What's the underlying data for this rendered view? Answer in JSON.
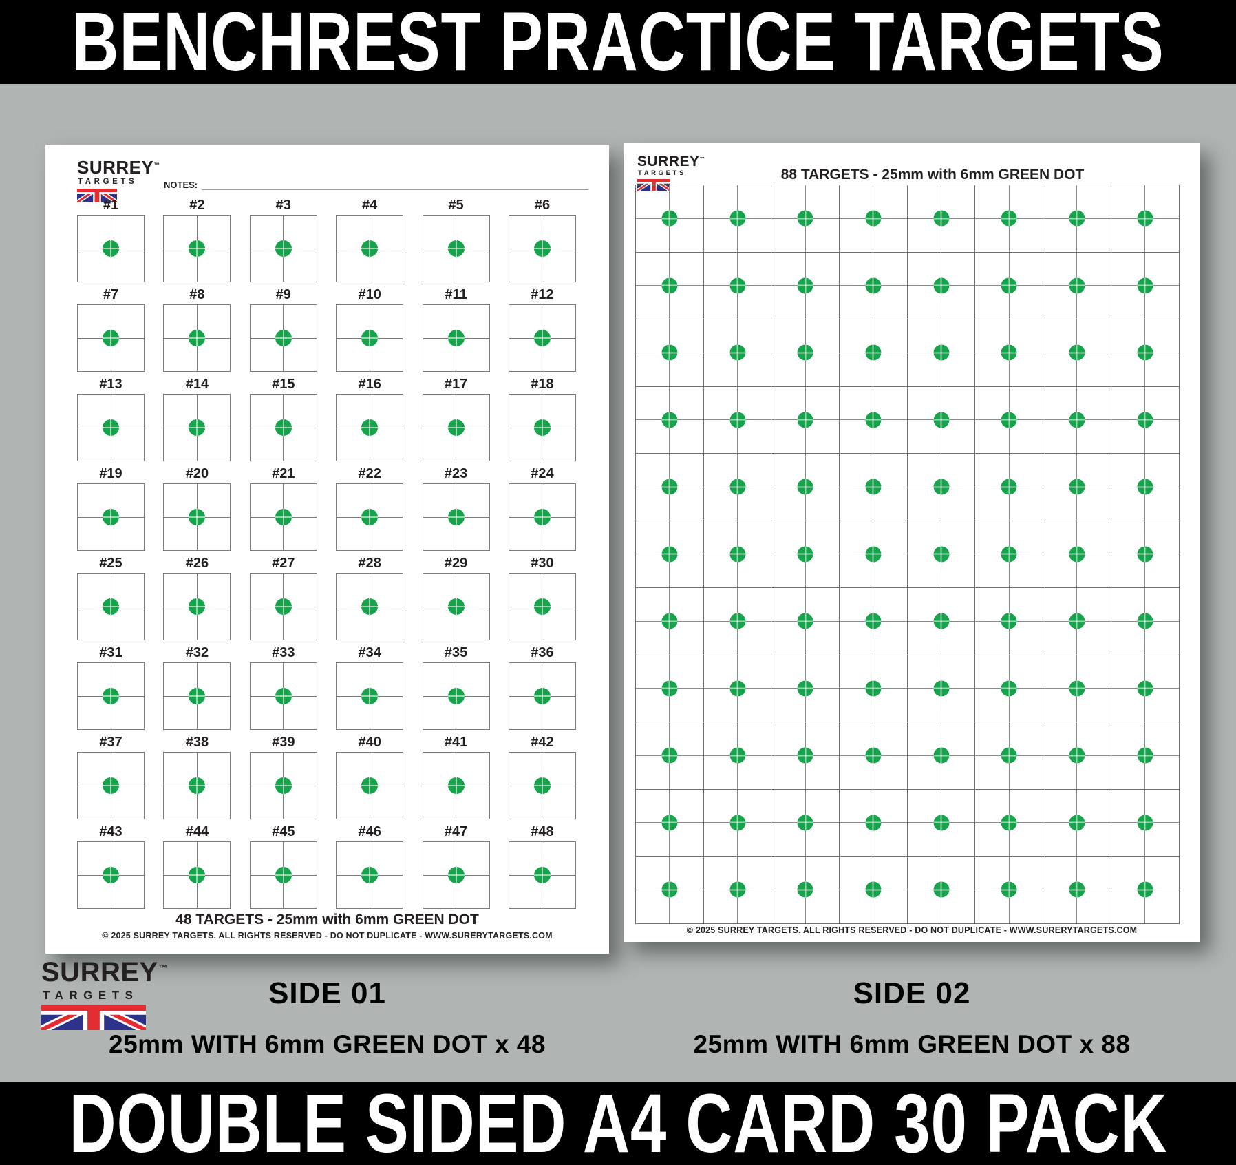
{
  "colors": {
    "background_gray": "#b0b5b3",
    "banner_black": "#000000",
    "banner_text_white": "#ffffff",
    "sheet_white": "#ffffff",
    "grid_line_gray": "#7c7c7c",
    "dot_green": "#17a24c",
    "text_dark": "#231f20",
    "flag_blue": "#2d3389",
    "flag_red": "#e42d31"
  },
  "top_banner": {
    "text": "BENCHREST PRACTICE TARGETS"
  },
  "bottom_banner": {
    "text": "DOUBLE SIDED A4 CARD 30 PACK"
  },
  "brand": {
    "name": "SURREY",
    "trademark": "™",
    "subtitle": "TARGETS",
    "flag_icon": "union-jack-flag"
  },
  "sheet1": {
    "notes_label": "NOTES:",
    "target_labels": [
      "#1",
      "#2",
      "#3",
      "#4",
      "#5",
      "#6",
      "#7",
      "#8",
      "#9",
      "#10",
      "#11",
      "#12",
      "#13",
      "#14",
      "#15",
      "#16",
      "#17",
      "#18",
      "#19",
      "#20",
      "#21",
      "#22",
      "#23",
      "#24",
      "#25",
      "#26",
      "#27",
      "#28",
      "#29",
      "#30",
      "#31",
      "#32",
      "#33",
      "#34",
      "#35",
      "#36",
      "#37",
      "#38",
      "#39",
      "#40",
      "#41",
      "#42",
      "#43",
      "#44",
      "#45",
      "#46",
      "#47",
      "#48"
    ],
    "grid": {
      "columns": 6,
      "rows": 8,
      "count": 48
    },
    "footer_title": "48 TARGETS - 25mm with 6mm GREEN DOT",
    "copyright": "© 2025 SURREY TARGETS. ALL RIGHTS RESERVED - DO NOT DUPLICATE - WWW.SURERYTARGETS.COM"
  },
  "sheet2": {
    "title": "88 TARGETS - 25mm with 6mm GREEN DOT",
    "grid": {
      "columns": 8,
      "rows": 11,
      "count": 88
    },
    "copyright": "© 2025 SURREY TARGETS. ALL RIGHTS RESERVED - DO NOT DUPLICATE - WWW.SURERYTARGETS.COM"
  },
  "captions": {
    "side1_title": "SIDE 01",
    "side1_desc": "25mm WITH 6mm GREEN DOT x 48",
    "side2_title": "SIDE 02",
    "side2_desc": "25mm WITH 6mm GREEN DOT x 88"
  }
}
